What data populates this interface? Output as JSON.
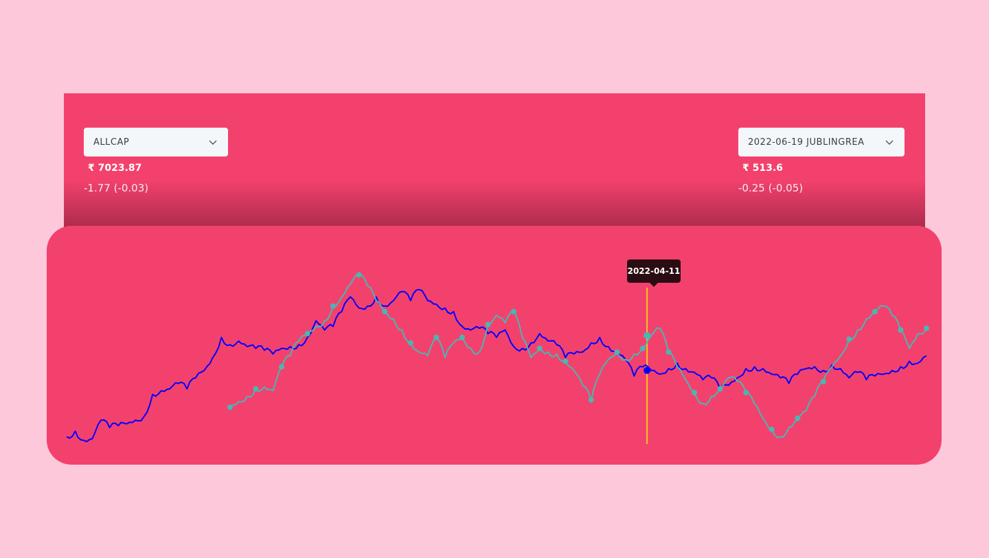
{
  "left_selector": {
    "value": "ALLCAP",
    "price": "₹ 7023.87",
    "change": "-1.77 (-0.03)"
  },
  "right_selector": {
    "value": "2022-06-19 JUBLINGREA",
    "price": "₹ 513.6",
    "change": "-0.25 (-0.05)"
  },
  "tooltip": {
    "label": "2022-04-11"
  },
  "colors": {
    "page_bg": "#fdc8da",
    "panel": "#f3416d",
    "series_1": "#0000ff",
    "series_2": "#4bb6b2",
    "cursor": "#f5c518",
    "tooltip_bg": "#2a0d12"
  },
  "icons": {
    "dropdown": "chevron-down-icon"
  },
  "chart_data": {
    "type": "line",
    "title": "",
    "xlabel": "",
    "ylabel": "",
    "grid": false,
    "legend": "none",
    "x_range": [
      0,
      100
    ],
    "y_range": [
      0,
      100
    ],
    "hover_x": 67.5,
    "series": [
      {
        "color": "#0000ff",
        "markers": false,
        "points": [
          [
            0,
            4
          ],
          [
            1,
            7
          ],
          [
            2,
            2
          ],
          [
            3,
            3
          ],
          [
            4,
            13
          ],
          [
            5,
            9
          ],
          [
            6,
            10
          ],
          [
            7,
            11
          ],
          [
            8,
            13
          ],
          [
            9,
            15
          ],
          [
            10,
            27
          ],
          [
            11,
            29
          ],
          [
            12,
            30
          ],
          [
            13,
            33
          ],
          [
            14,
            30
          ],
          [
            15,
            36
          ],
          [
            16,
            40
          ],
          [
            17,
            47
          ],
          [
            18,
            58
          ],
          [
            19,
            54
          ],
          [
            20,
            56
          ],
          [
            21,
            53
          ],
          [
            22,
            52
          ],
          [
            23,
            51
          ],
          [
            24,
            49
          ],
          [
            25,
            52
          ],
          [
            26,
            53
          ],
          [
            27,
            54
          ],
          [
            28,
            58
          ],
          [
            29,
            67
          ],
          [
            30,
            62
          ],
          [
            31,
            64
          ],
          [
            32,
            72
          ],
          [
            33,
            80
          ],
          [
            34,
            74
          ],
          [
            35,
            75
          ],
          [
            36,
            80
          ],
          [
            37,
            75
          ],
          [
            38,
            78
          ],
          [
            39,
            83
          ],
          [
            40,
            78
          ],
          [
            41,
            84
          ],
          [
            42,
            78
          ],
          [
            43,
            76
          ],
          [
            44,
            74
          ],
          [
            45,
            72
          ],
          [
            46,
            64
          ],
          [
            47,
            62
          ],
          [
            48,
            63
          ],
          [
            49,
            60
          ],
          [
            50,
            58
          ],
          [
            51,
            62
          ],
          [
            52,
            53
          ],
          [
            53,
            52
          ],
          [
            54,
            55
          ],
          [
            55,
            60
          ],
          [
            56,
            56
          ],
          [
            57,
            54
          ],
          [
            58,
            47
          ],
          [
            59,
            49
          ],
          [
            60,
            50
          ],
          [
            61,
            55
          ],
          [
            62,
            58
          ],
          [
            63,
            53
          ],
          [
            64,
            50
          ],
          [
            65,
            46
          ],
          [
            66,
            37
          ],
          [
            67,
            42
          ],
          [
            68,
            40
          ],
          [
            69,
            38
          ],
          [
            70,
            41
          ],
          [
            71,
            44
          ],
          [
            72,
            41
          ],
          [
            73,
            39
          ],
          [
            74,
            35
          ],
          [
            75,
            36
          ],
          [
            76,
            30
          ],
          [
            77,
            32
          ],
          [
            78,
            36
          ],
          [
            79,
            41
          ],
          [
            80,
            42
          ],
          [
            81,
            41
          ],
          [
            82,
            38
          ],
          [
            83,
            36
          ],
          [
            84,
            33
          ],
          [
            85,
            38
          ],
          [
            86,
            41
          ],
          [
            87,
            42
          ],
          [
            88,
            40
          ],
          [
            89,
            43
          ],
          [
            90,
            41
          ],
          [
            91,
            36
          ],
          [
            92,
            39
          ],
          [
            93,
            35
          ],
          [
            94,
            37
          ],
          [
            95,
            38
          ],
          [
            96,
            40
          ],
          [
            97,
            42
          ],
          [
            98,
            45
          ],
          [
            99,
            44
          ],
          [
            100,
            48
          ]
        ]
      },
      {
        "color": "#4bb6b2",
        "markers": true,
        "points": [
          [
            19,
            20
          ],
          [
            20,
            23
          ],
          [
            21,
            26
          ],
          [
            22,
            30
          ],
          [
            23,
            31
          ],
          [
            24,
            29
          ],
          [
            25,
            42
          ],
          [
            26,
            48
          ],
          [
            27,
            56
          ],
          [
            28,
            60
          ],
          [
            29,
            64
          ],
          [
            30,
            67
          ],
          [
            31,
            75
          ],
          [
            32,
            80
          ],
          [
            33,
            87
          ],
          [
            34,
            92
          ],
          [
            35,
            86
          ],
          [
            36,
            78
          ],
          [
            37,
            72
          ],
          [
            38,
            68
          ],
          [
            39,
            62
          ],
          [
            40,
            55
          ],
          [
            41,
            50
          ],
          [
            42,
            48
          ],
          [
            43,
            58
          ],
          [
            44,
            47
          ],
          [
            45,
            55
          ],
          [
            46,
            58
          ],
          [
            47,
            52
          ],
          [
            48,
            50
          ],
          [
            49,
            65
          ],
          [
            50,
            70
          ],
          [
            51,
            66
          ],
          [
            52,
            72
          ],
          [
            53,
            58
          ],
          [
            54,
            47
          ],
          [
            55,
            52
          ],
          [
            56,
            50
          ],
          [
            57,
            49
          ],
          [
            58,
            45
          ],
          [
            59,
            40
          ],
          [
            60,
            32
          ],
          [
            61,
            24
          ],
          [
            62,
            38
          ],
          [
            63,
            46
          ],
          [
            64,
            50
          ],
          [
            65,
            46
          ],
          [
            66,
            49
          ],
          [
            67,
            52
          ],
          [
            68,
            59
          ],
          [
            69,
            63
          ],
          [
            70,
            50
          ],
          [
            71,
            42
          ],
          [
            72,
            35
          ],
          [
            73,
            28
          ],
          [
            74,
            22
          ],
          [
            75,
            26
          ],
          [
            76,
            30
          ],
          [
            77,
            36
          ],
          [
            78,
            34
          ],
          [
            79,
            28
          ],
          [
            80,
            22
          ],
          [
            81,
            14
          ],
          [
            82,
            8
          ],
          [
            83,
            4
          ],
          [
            84,
            9
          ],
          [
            85,
            14
          ],
          [
            86,
            18
          ],
          [
            87,
            26
          ],
          [
            88,
            34
          ],
          [
            89,
            42
          ],
          [
            90,
            48
          ],
          [
            91,
            57
          ],
          [
            92,
            62
          ],
          [
            93,
            68
          ],
          [
            94,
            72
          ],
          [
            95,
            75
          ],
          [
            96,
            70
          ],
          [
            97,
            62
          ],
          [
            98,
            52
          ],
          [
            99,
            60
          ],
          [
            100,
            63
          ]
        ]
      }
    ]
  }
}
